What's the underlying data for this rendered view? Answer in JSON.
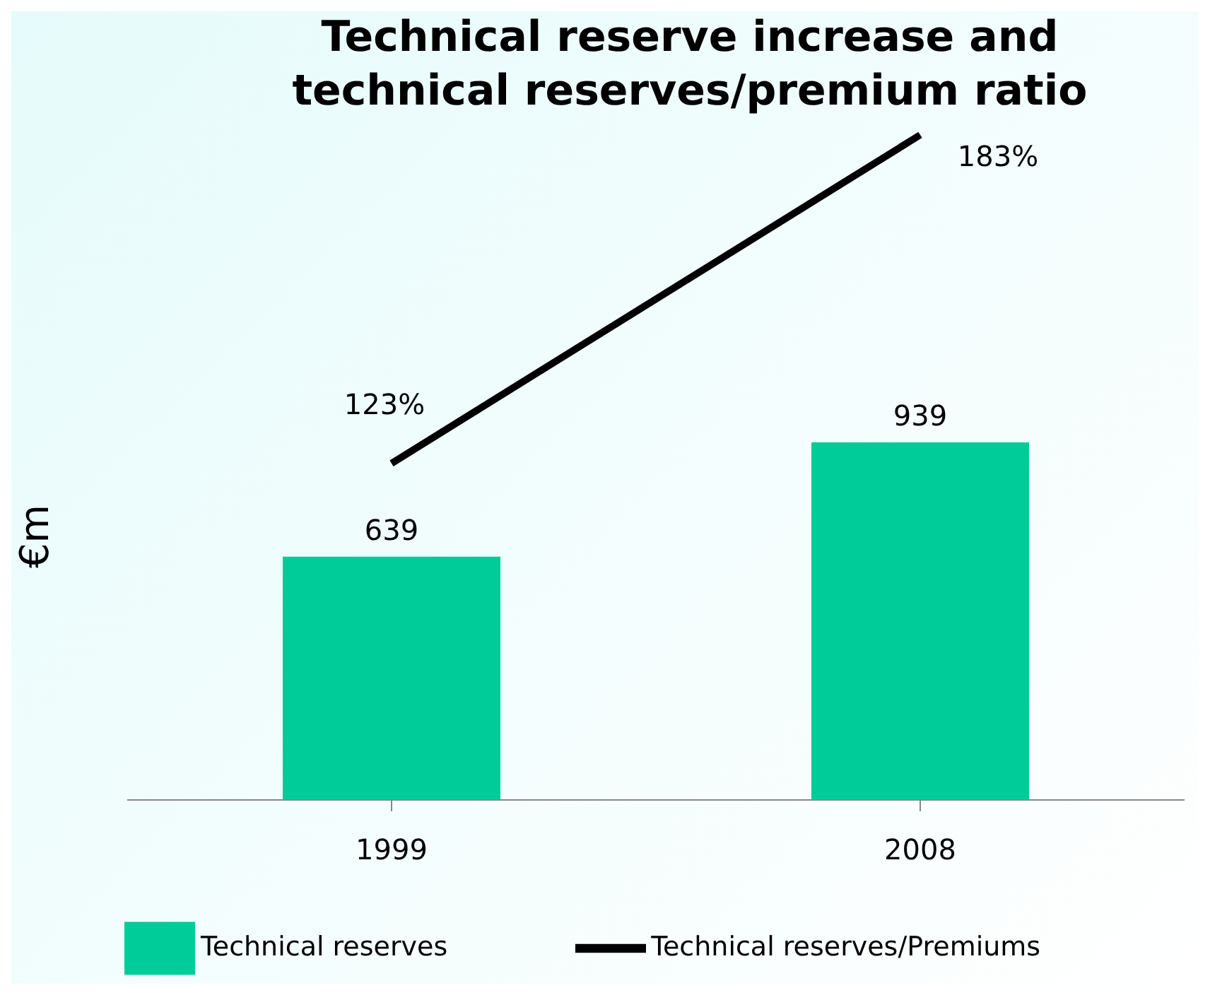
{
  "chart_data": {
    "type": "bar",
    "title": "Technical reserve increase and\ntechnical reserves/premium ratio",
    "ylabel": "€m",
    "categories": [
      "1999",
      "2008"
    ],
    "series": [
      {
        "name": "Technical reserves",
        "color": "#00cc99",
        "values": [
          639,
          939
        ],
        "value_labels": [
          "639",
          "939"
        ]
      },
      {
        "name": "Technical reserves/Premiums",
        "type": "line",
        "axis": "y2",
        "color": "#000000",
        "values": [
          123,
          183
        ],
        "value_labels": [
          "123%",
          "183%"
        ]
      }
    ],
    "tick_labels": "x",
    "legend": "bottom",
    "marker": "none",
    "line_style": "solid"
  }
}
